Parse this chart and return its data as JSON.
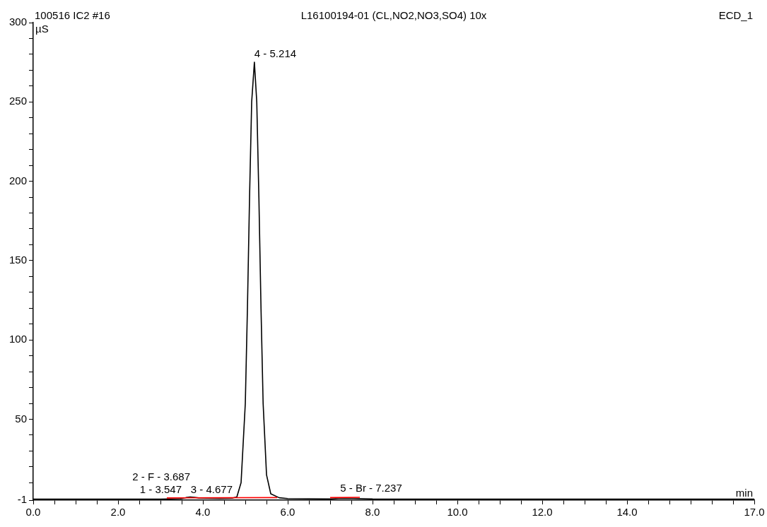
{
  "chart_data": {
    "type": "line",
    "title": "L16100194-01 (CL,NO2,NO3,SO4) 10x",
    "subtitle": "100516 IC2 #16",
    "xlabel": "min",
    "ylabel": "µS",
    "annotations": [
      "ECD_1",
      {
        "text": "1 - 3.547",
        "x": 3.5,
        "y": 0
      },
      {
        "text": "2 - F - 3.687",
        "x": 3.7,
        "y": 1
      },
      {
        "text": "3 - 4.677",
        "x": 4.7,
        "y": 0.3
      },
      {
        "text": "4 - 5.214",
        "x": 5.214,
        "y": 275
      },
      {
        "text": "5 - Br - 7.237",
        "x": 7.237,
        "y": 1
      }
    ],
    "series": [
      {
        "color": "#000000",
        "x": [
          0,
          1,
          2,
          3,
          3.2,
          3.5,
          3.6,
          3.7,
          3.8,
          3.9,
          4.1,
          4.4,
          4.7,
          4.8,
          4.9,
          5.0,
          5.05,
          5.1,
          5.15,
          5.214,
          5.27,
          5.32,
          5.37,
          5.42,
          5.5,
          5.6,
          5.8,
          6.0,
          7.0,
          7.2,
          7.4,
          7.7,
          8.0,
          10,
          12,
          13.5,
          14,
          17
        ],
        "values": [
          -0.3,
          -0.3,
          -0.3,
          -0.3,
          -0.2,
          0,
          0.6,
          1,
          0.8,
          0.4,
          0.2,
          0.1,
          0.3,
          1,
          10,
          60,
          120,
          190,
          250,
          275,
          250,
          190,
          120,
          60,
          15,
          3,
          0.5,
          0,
          -0.2,
          0.1,
          0.2,
          0,
          -0.2,
          -0.3,
          -0.3,
          -0.3,
          -0.3,
          -0.3
        ]
      },
      {
        "color": "#ff0000",
        "x": [
          3.15,
          5.75
        ],
        "values": [
          0.4,
          0.6
        ]
      },
      {
        "color": "#ff0000",
        "x": [
          7.0,
          7.7
        ],
        "values": [
          0.6,
          0.8
        ]
      }
    ],
    "xlim": [
      0,
      17
    ],
    "ylim": [
      -1,
      300
    ],
    "xticks": [
      {
        "value": 0,
        "label": "0.0"
      },
      {
        "value": 0.5,
        "label": null
      },
      {
        "value": 1,
        "label": null
      },
      {
        "value": 1.5,
        "label": null
      },
      {
        "value": 2,
        "label": "2.0"
      },
      {
        "value": 2.5,
        "label": null
      },
      {
        "value": 3,
        "label": null
      },
      {
        "value": 3.5,
        "label": null
      },
      {
        "value": 4,
        "label": "4.0"
      },
      {
        "value": 4.5,
        "label": null
      },
      {
        "value": 5,
        "label": null
      },
      {
        "value": 5.5,
        "label": null
      },
      {
        "value": 6,
        "label": "6.0"
      },
      {
        "value": 6.5,
        "label": null
      },
      {
        "value": 7,
        "label": null
      },
      {
        "value": 7.5,
        "label": null
      },
      {
        "value": 8,
        "label": "8.0"
      },
      {
        "value": 8.5,
        "label": null
      },
      {
        "value": 9,
        "label": null
      },
      {
        "value": 9.5,
        "label": null
      },
      {
        "value": 10,
        "label": "10.0"
      },
      {
        "value": 10.5,
        "label": null
      },
      {
        "value": 11,
        "label": null
      },
      {
        "value": 11.5,
        "label": null
      },
      {
        "value": 12,
        "label": "12.0"
      },
      {
        "value": 12.5,
        "label": null
      },
      {
        "value": 13,
        "label": null
      },
      {
        "value": 13.5,
        "label": null
      },
      {
        "value": 14,
        "label": "14.0"
      },
      {
        "value": 14.5,
        "label": null
      },
      {
        "value": 15,
        "label": null
      },
      {
        "value": 15.5,
        "label": null
      },
      {
        "value": 16,
        "label": null
      },
      {
        "value": 16.5,
        "label": null
      },
      {
        "value": 17,
        "label": "17.0"
      }
    ],
    "yticks": [
      -1,
      {
        "value": 10,
        "label": null
      },
      {
        "value": 20,
        "label": null
      },
      {
        "value": 30,
        "label": null
      },
      {
        "value": 40,
        "label": null
      },
      50,
      {
        "value": 60,
        "label": null
      },
      {
        "value": 70,
        "label": null
      },
      {
        "value": 80,
        "label": null
      },
      {
        "value": 90,
        "label": null
      },
      100,
      {
        "value": 110,
        "label": null
      },
      {
        "value": 120,
        "label": null
      },
      {
        "value": 130,
        "label": null
      },
      {
        "value": 140,
        "label": null
      },
      150,
      {
        "value": 160,
        "label": null
      },
      {
        "value": 170,
        "label": null
      },
      {
        "value": 180,
        "label": null
      },
      {
        "value": 190,
        "label": null
      },
      200,
      {
        "value": 210,
        "label": null
      },
      {
        "value": 220,
        "label": null
      },
      {
        "value": 230,
        "label": null
      },
      {
        "value": 240,
        "label": null
      },
      250,
      {
        "value": 260,
        "label": null
      },
      {
        "value": 270,
        "label": null
      },
      {
        "value": 280,
        "label": null
      },
      {
        "value": 290,
        "label": null
      },
      300
    ],
    "grid": false,
    "legend": false,
    "marker": "none",
    "line_style": "solid"
  }
}
